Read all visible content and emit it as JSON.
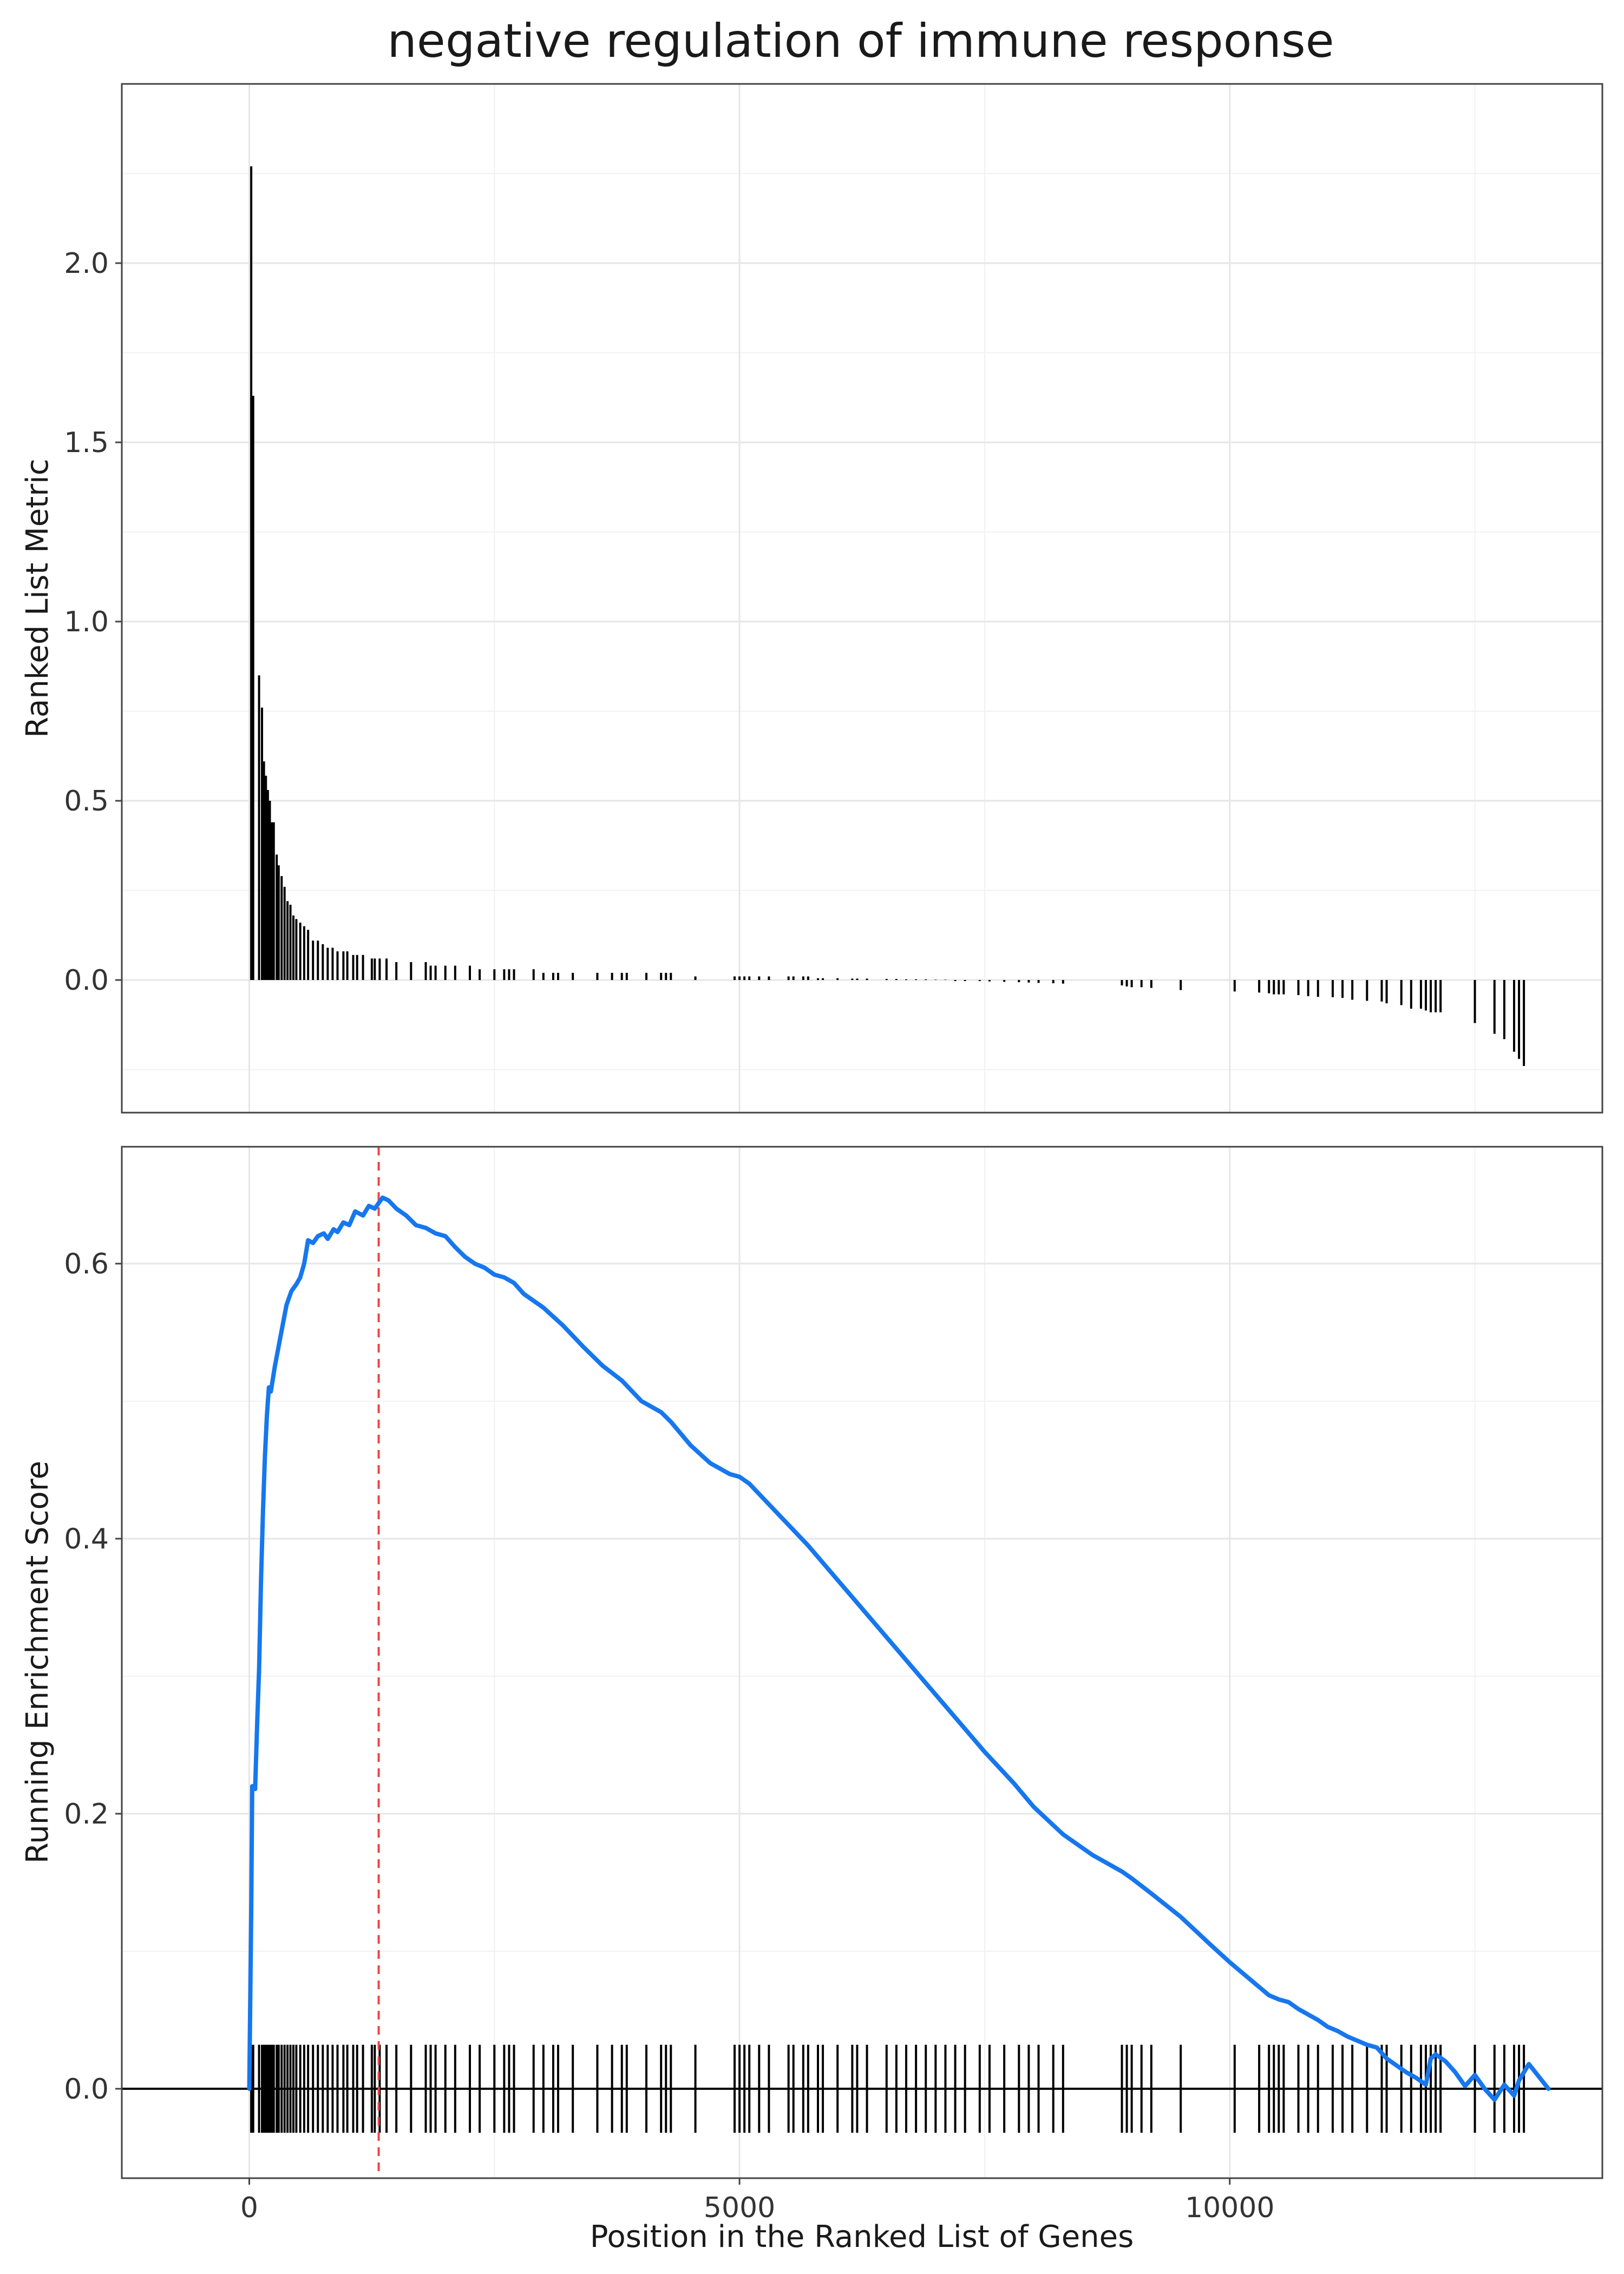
{
  "chart_data": [
    {
      "type": "bar",
      "panel": "ranked-list-metric",
      "title": "negative regulation of immune response",
      "ylabel": "Ranked List Metric",
      "xlabel": "",
      "xlim": [
        -1300,
        13800
      ],
      "ylim": [
        -0.37,
        2.5
      ],
      "yticks": [
        0.0,
        0.5,
        1.0,
        1.5,
        2.0
      ],
      "ytick_labels": [
        "0.0",
        "0.5",
        "1.0",
        "1.5",
        "2.0"
      ],
      "xticks": [
        0,
        5000,
        10000
      ],
      "grid": true,
      "color": "#000000",
      "x": [
        20,
        40,
        100,
        130,
        150,
        170,
        190,
        210,
        230,
        250,
        280,
        300,
        330,
        360,
        390,
        420,
        450,
        480,
        520,
        560,
        600,
        650,
        700,
        750,
        800,
        850,
        900,
        960,
        1000,
        1060,
        1100,
        1160,
        1250,
        1280,
        1330,
        1400,
        1500,
        1650,
        1800,
        1850,
        1900,
        2000,
        2100,
        2250,
        2350,
        2500,
        2600,
        2650,
        2700,
        2900,
        3000,
        3100,
        3150,
        3300,
        3550,
        3700,
        3800,
        3850,
        4050,
        4200,
        4250,
        4300,
        4550,
        4950,
        5000,
        5050,
        5100,
        5200,
        5300,
        5500,
        5550,
        5650,
        5700,
        5800,
        5850,
        6000,
        6150,
        6200,
        6300,
        6500,
        6600,
        6700,
        6800,
        6900,
        7000,
        7100,
        7200,
        7300,
        7450,
        7550,
        7700,
        7850,
        7950,
        8050,
        8200,
        8300,
        8900,
        8950,
        9000,
        9100,
        9200,
        9500,
        10050,
        10300,
        10400,
        10450,
        10500,
        10550,
        10700,
        10800,
        10900,
        11050,
        11150,
        11250,
        11400,
        11550,
        11600,
        11750,
        11850,
        11950,
        12000,
        12050,
        12100,
        12150,
        12500,
        12700,
        12800,
        12900,
        12950,
        13000
      ],
      "values": [
        2.27,
        1.63,
        0.85,
        0.76,
        0.61,
        0.57,
        0.53,
        0.5,
        0.44,
        0.44,
        0.35,
        0.32,
        0.29,
        0.26,
        0.22,
        0.21,
        0.18,
        0.17,
        0.16,
        0.15,
        0.14,
        0.11,
        0.11,
        0.1,
        0.09,
        0.09,
        0.08,
        0.08,
        0.08,
        0.07,
        0.07,
        0.07,
        0.06,
        0.06,
        0.06,
        0.06,
        0.05,
        0.05,
        0.05,
        0.04,
        0.04,
        0.04,
        0.04,
        0.04,
        0.03,
        0.03,
        0.03,
        0.03,
        0.03,
        0.03,
        0.02,
        0.02,
        0.02,
        0.02,
        0.02,
        0.02,
        0.02,
        0.02,
        0.02,
        0.02,
        0.02,
        0.02,
        0.01,
        0.01,
        0.01,
        0.01,
        0.01,
        0.01,
        0.01,
        0.01,
        0.01,
        0.01,
        0.01,
        0.005,
        0.005,
        0.005,
        0.004,
        0.004,
        0.004,
        0.003,
        0.003,
        0.002,
        0.002,
        0.002,
        0.001,
        0.001,
        -0.003,
        -0.003,
        -0.003,
        -0.004,
        -0.005,
        -0.006,
        -0.007,
        -0.008,
        -0.009,
        -0.01,
        -0.015,
        -0.018,
        -0.02,
        -0.02,
        -0.022,
        -0.028,
        -0.032,
        -0.035,
        -0.037,
        -0.04,
        -0.04,
        -0.04,
        -0.042,
        -0.045,
        -0.047,
        -0.048,
        -0.05,
        -0.055,
        -0.058,
        -0.06,
        -0.065,
        -0.07,
        -0.08,
        -0.08,
        -0.085,
        -0.09,
        -0.09,
        -0.09,
        -0.12,
        -0.15,
        -0.165,
        -0.2,
        -0.22,
        -0.24
      ]
    },
    {
      "type": "line",
      "panel": "running-enrichment-score",
      "title": "",
      "xlabel": "Position in the Ranked List of Genes",
      "ylabel": "Running Enrichment Score",
      "xlim": [
        -1300,
        13800
      ],
      "ylim": [
        -0.065,
        0.685
      ],
      "xticks": [
        0,
        5000,
        10000
      ],
      "xtick_labels": [
        "0",
        "5000",
        "10000"
      ],
      "yticks": [
        0.0,
        0.2,
        0.4,
        0.6
      ],
      "ytick_labels": [
        "0.0",
        "0.2",
        "0.4",
        "0.6"
      ],
      "grid": true,
      "line_color": "#1677ee",
      "peak_color": "#ee4444",
      "peak_x": 1320,
      "zero_line": 0.0,
      "x": [
        0,
        20,
        30,
        40,
        60,
        80,
        100,
        120,
        140,
        160,
        180,
        200,
        220,
        260,
        300,
        340,
        380,
        430,
        480,
        520,
        560,
        600,
        650,
        700,
        760,
        800,
        860,
        900,
        960,
        1020,
        1080,
        1160,
        1220,
        1280,
        1320,
        1360,
        1420,
        1500,
        1600,
        1700,
        1800,
        1900,
        2000,
        2100,
        2200,
        2300,
        2400,
        2500,
        2600,
        2700,
        2800,
        3000,
        3200,
        3400,
        3600,
        3800,
        4000,
        4200,
        4300,
        4500,
        4700,
        4900,
        5000,
        5100,
        5300,
        5500,
        5700,
        6000,
        6300,
        6600,
        6900,
        7200,
        7500,
        7800,
        8000,
        8300,
        8600,
        8900,
        9000,
        9200,
        9500,
        9800,
        10000,
        10200,
        10400,
        10500,
        10600,
        10700,
        10800,
        10900,
        11000,
        11100,
        11200,
        11400,
        11500,
        11600,
        11800,
        11900,
        12000,
        12050,
        12100,
        12200,
        12300,
        12400,
        12500,
        12600,
        12700,
        12800,
        12900,
        12950,
        13000,
        13050,
        13250
      ],
      "values": [
        0.0,
        0.13,
        0.22,
        0.22,
        0.218,
        0.265,
        0.305,
        0.37,
        0.42,
        0.46,
        0.49,
        0.51,
        0.507,
        0.525,
        0.54,
        0.555,
        0.57,
        0.58,
        0.585,
        0.59,
        0.6,
        0.617,
        0.615,
        0.62,
        0.622,
        0.618,
        0.625,
        0.623,
        0.63,
        0.628,
        0.638,
        0.635,
        0.642,
        0.64,
        0.644,
        0.648,
        0.646,
        0.64,
        0.635,
        0.628,
        0.626,
        0.622,
        0.62,
        0.612,
        0.605,
        0.6,
        0.597,
        0.592,
        0.59,
        0.586,
        0.578,
        0.568,
        0.555,
        0.54,
        0.526,
        0.515,
        0.5,
        0.492,
        0.485,
        0.468,
        0.455,
        0.447,
        0.445,
        0.44,
        0.425,
        0.41,
        0.395,
        0.37,
        0.345,
        0.32,
        0.295,
        0.27,
        0.245,
        0.222,
        0.205,
        0.185,
        0.17,
        0.158,
        0.153,
        0.142,
        0.125,
        0.105,
        0.092,
        0.08,
        0.068,
        0.065,
        0.063,
        0.058,
        0.054,
        0.05,
        0.045,
        0.042,
        0.038,
        0.032,
        0.03,
        0.022,
        0.012,
        0.008,
        0.003,
        0.022,
        0.025,
        0.02,
        0.012,
        0.002,
        0.01,
        0.0,
        -0.008,
        0.003,
        -0.005,
        0.006,
        0.012,
        0.018,
        0.0
      ],
      "hit_positions": [
        20,
        40,
        100,
        130,
        150,
        170,
        190,
        210,
        230,
        250,
        280,
        300,
        330,
        360,
        390,
        420,
        450,
        480,
        520,
        560,
        600,
        650,
        700,
        750,
        800,
        850,
        900,
        960,
        1000,
        1060,
        1100,
        1160,
        1250,
        1280,
        1330,
        1400,
        1500,
        1650,
        1800,
        1850,
        1900,
        2000,
        2100,
        2250,
        2350,
        2500,
        2600,
        2650,
        2700,
        2900,
        3000,
        3100,
        3150,
        3300,
        3550,
        3700,
        3800,
        3850,
        4050,
        4200,
        4250,
        4300,
        4550,
        4950,
        5000,
        5050,
        5100,
        5200,
        5300,
        5500,
        5550,
        5650,
        5700,
        5800,
        5850,
        6000,
        6150,
        6200,
        6300,
        6500,
        6600,
        6700,
        6800,
        6900,
        7000,
        7100,
        7200,
        7300,
        7450,
        7550,
        7700,
        7850,
        7950,
        8050,
        8200,
        8300,
        8900,
        8950,
        9000,
        9100,
        9200,
        9500,
        10050,
        10300,
        10400,
        10450,
        10500,
        10550,
        10700,
        10800,
        10900,
        11050,
        11150,
        11250,
        11400,
        11550,
        11600,
        11750,
        11850,
        11950,
        12000,
        12050,
        12100,
        12150,
        12500,
        12700,
        12800,
        12900,
        12950,
        13000
      ]
    }
  ]
}
